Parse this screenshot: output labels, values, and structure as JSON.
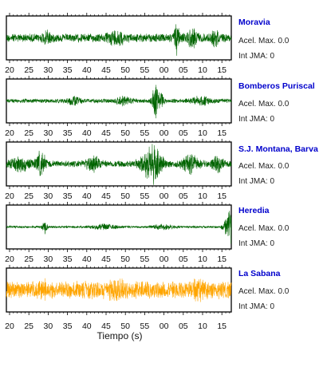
{
  "chart_data": {
    "type": "line",
    "xlabel": "Tiempo (s)",
    "x_ticks": [
      "20",
      "25",
      "30",
      "35",
      "40",
      "45",
      "50",
      "55",
      "00",
      "05",
      "10",
      "15"
    ],
    "accent_color": "#0000cc",
    "series": [
      {
        "name": "Moravia",
        "acel_label": "Acel. Max. 0.0",
        "jma_label": "Int JMA: 0",
        "color": "#006400",
        "base": 0.22,
        "bursts": [
          {
            "x": 63.5,
            "amp": 0.75,
            "width": 0.6
          },
          {
            "x": 67.5,
            "amp": 0.35,
            "width": 1.5
          },
          {
            "x": 30.0,
            "amp": 0.3,
            "width": 1.0
          },
          {
            "x": 48.0,
            "amp": 0.3,
            "width": 2.0
          },
          {
            "x": 73.5,
            "amp": 0.3,
            "width": 1.0
          }
        ]
      },
      {
        "name": "Bomberos Puriscal",
        "acel_label": "Acel. Max. 0.0",
        "jma_label": "Int JMA: 0",
        "color": "#006400",
        "base": 0.11,
        "bursts": [
          {
            "x": 58.0,
            "amp": 0.85,
            "width": 0.8
          },
          {
            "x": 59.5,
            "amp": 0.4,
            "width": 0.6
          },
          {
            "x": 17.5,
            "amp": 0.45,
            "width": 0.4
          },
          {
            "x": 37.0,
            "amp": 0.2,
            "width": 1.5
          },
          {
            "x": 50.0,
            "amp": 0.18,
            "width": 2.0
          },
          {
            "x": 70.0,
            "amp": 0.18,
            "width": 2.5
          }
        ]
      },
      {
        "name": "S.J. Montana, Barva",
        "acel_label": "Acel. Max. 0.0",
        "jma_label": "Int JMA: 0",
        "color": "#006400",
        "base": 0.17,
        "bursts": [
          {
            "x": 57.0,
            "amp": 0.9,
            "width": 2.5
          },
          {
            "x": 28.5,
            "amp": 0.55,
            "width": 1.2
          },
          {
            "x": 23.0,
            "amp": 0.3,
            "width": 2.5
          },
          {
            "x": 42.0,
            "amp": 0.3,
            "width": 2.0
          },
          {
            "x": 67.0,
            "amp": 0.4,
            "width": 2.0
          },
          {
            "x": 74.0,
            "amp": 0.3,
            "width": 1.5
          }
        ]
      },
      {
        "name": "Heredia",
        "acel_label": "Acel. Max. 0.0",
        "jma_label": "Int JMA: 0",
        "color": "#006400",
        "base": 0.06,
        "bursts": [
          {
            "x": 77.5,
            "amp": 0.95,
            "width": 0.6
          },
          {
            "x": 76.5,
            "amp": 0.45,
            "width": 1.0
          },
          {
            "x": 29.5,
            "amp": 0.35,
            "width": 0.6
          },
          {
            "x": 45.0,
            "amp": 0.12,
            "width": 3.0
          },
          {
            "x": 60.0,
            "amp": 0.1,
            "width": 3.0
          }
        ]
      },
      {
        "name": "La Sabana",
        "acel_label": "Acel. Max. 0.0",
        "jma_label": "Int JMA: 0",
        "color": "#ffa500",
        "base": 0.45,
        "bursts": [
          {
            "x": 29.0,
            "amp": 0.25,
            "width": 1.0
          },
          {
            "x": 69.0,
            "amp": 0.3,
            "width": 1.0
          },
          {
            "x": 48.0,
            "amp": 0.2,
            "width": 2.0
          }
        ]
      }
    ]
  }
}
